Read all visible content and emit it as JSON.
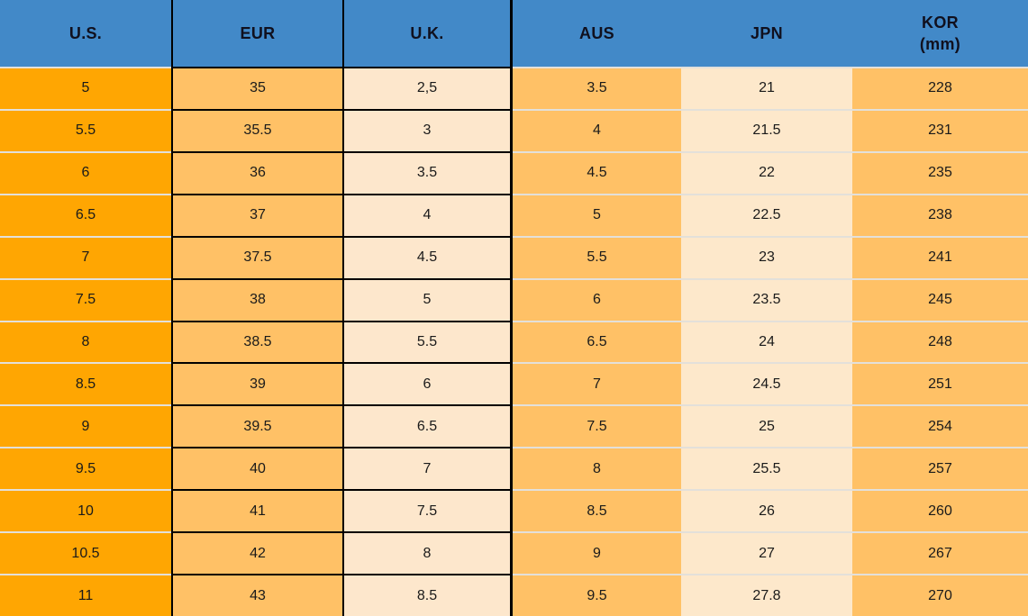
{
  "header": {
    "columns": [
      {
        "key": "us",
        "line1": "U.S.",
        "line2": ""
      },
      {
        "key": "eur",
        "line1": "EUR",
        "line2": ""
      },
      {
        "key": "uk",
        "line1": "U.K.",
        "line2": ""
      },
      {
        "key": "aus",
        "line1": "AUS",
        "line2": ""
      },
      {
        "key": "jpn",
        "line1": "JPN",
        "line2": ""
      },
      {
        "key": "kor",
        "line1": "KOR",
        "line2": "(mm)"
      }
    ]
  },
  "chart_data": {
    "type": "table",
    "title": "",
    "columns": [
      "U.S.",
      "EUR",
      "U.K.",
      "AUS",
      "JPN",
      "KOR (mm)"
    ],
    "rows": [
      [
        "5",
        "35",
        "2,5",
        "3.5",
        "21",
        "228"
      ],
      [
        "5.5",
        "35.5",
        "3",
        "4",
        "21.5",
        "231"
      ],
      [
        "6",
        "36",
        "3.5",
        "4.5",
        "22",
        "235"
      ],
      [
        "6.5",
        "37",
        "4",
        "5",
        "22.5",
        "238"
      ],
      [
        "7",
        "37.5",
        "4.5",
        "5.5",
        "23",
        "241"
      ],
      [
        "7.5",
        "38",
        "5",
        "6",
        "23.5",
        "245"
      ],
      [
        "8",
        "38.5",
        "5.5",
        "6.5",
        "24",
        "248"
      ],
      [
        "8.5",
        "39",
        "6",
        "7",
        "24.5",
        "251"
      ],
      [
        "9",
        "39.5",
        "6.5",
        "7.5",
        "25",
        "254"
      ],
      [
        "9.5",
        "40",
        "7",
        "8",
        "25.5",
        "257"
      ],
      [
        "10",
        "41",
        "7.5",
        "8.5",
        "26",
        "260"
      ],
      [
        "10.5",
        "42",
        "8",
        "9",
        "27",
        "267"
      ],
      [
        "11",
        "43",
        "8.5",
        "9.5",
        "27.8",
        "270"
      ]
    ]
  },
  "colors": {
    "header_bg": "#4289c8",
    "us_bg": "#ffa602",
    "eur_bg": "#ffc166",
    "uk_bg": "#fde7cc",
    "aus_bg": "#ffc166",
    "jpn_bg": "#fde8cb",
    "kor_bg": "#ffc166",
    "grid_black": "#000000",
    "grid_light": "#e3e0da",
    "header_text": "#10101e",
    "cell_text": "#1a1a1a"
  }
}
